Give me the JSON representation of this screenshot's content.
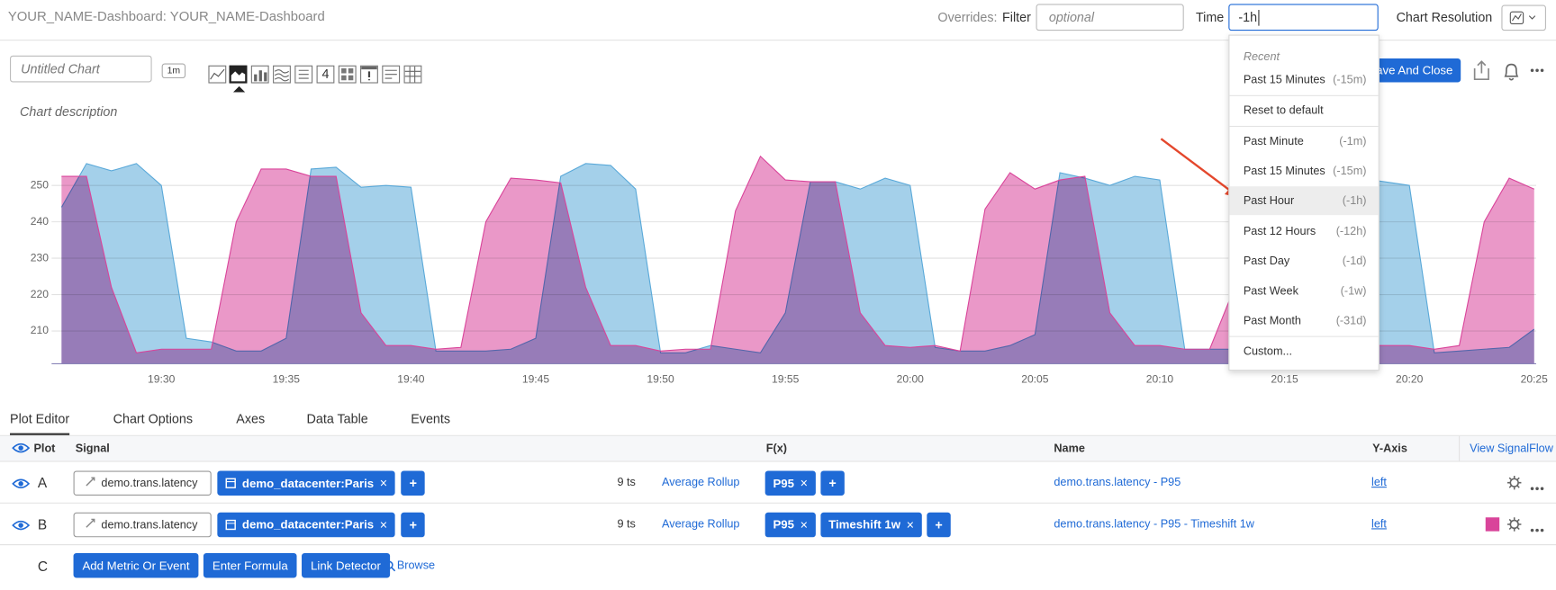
{
  "header": {
    "title": "YOUR_NAME-Dashboard: YOUR_NAME-Dashboard",
    "overrides_label": "Overrides:",
    "filter_label": "Filter",
    "filter_placeholder": "optional",
    "time_label": "Time",
    "time_value": "-1h",
    "resolution_label": "Chart Resolution"
  },
  "editor": {
    "chart_name_placeholder": "Untitled Chart",
    "resolution_badge": "1m",
    "single_value_icon": "4",
    "save_button": "Save And Close",
    "description_placeholder": "Chart description"
  },
  "chart_data": {
    "type": "area",
    "x": [
      "19:26",
      "19:27",
      "19:28",
      "19:29",
      "19:30",
      "19:31",
      "19:32",
      "19:33",
      "19:34",
      "19:35",
      "19:36",
      "19:37",
      "19:38",
      "19:39",
      "19:40",
      "19:41",
      "19:42",
      "19:43",
      "19:44",
      "19:45",
      "19:46",
      "19:47",
      "19:48",
      "19:49",
      "19:50",
      "19:51",
      "19:52",
      "19:53",
      "19:54",
      "19:55",
      "19:56",
      "19:57",
      "19:58",
      "19:59",
      "20:00",
      "20:01",
      "20:02",
      "20:03",
      "20:04",
      "20:05",
      "20:06",
      "20:07",
      "20:08",
      "20:09",
      "20:10",
      "20:11",
      "20:12",
      "20:13",
      "20:14",
      "20:15",
      "20:16",
      "20:17",
      "20:18",
      "20:19",
      "20:20",
      "20:21",
      "20:22",
      "20:23",
      "20:24",
      "20:25"
    ],
    "series": [
      {
        "name": "demo.trans.latency - P95",
        "color": "#5aa9d9",
        "values": [
          244,
          256,
          254,
          256,
          250,
          208,
          207,
          204.5,
          204.5,
          208,
          254.5,
          255,
          249.5,
          250,
          249.5,
          204.5,
          204.5,
          204.5,
          205,
          208,
          252.5,
          256,
          255.5,
          249,
          204,
          204,
          206,
          205,
          204,
          215,
          251,
          251,
          249,
          252,
          250,
          205.5,
          204.5,
          204.5,
          206,
          209,
          253.5,
          252,
          250,
          252.5,
          251.5,
          205,
          205,
          205,
          205,
          206,
          208,
          240,
          252,
          251,
          250,
          204,
          204.5,
          205,
          205.5,
          210.5
        ]
      },
      {
        "name": "demo.trans.latency - P95 - Timeshift 1w",
        "color": "#d9449a",
        "values": [
          252.5,
          252.5,
          222,
          204,
          205,
          205,
          205,
          240,
          254.5,
          254.5,
          252.5,
          252.5,
          215,
          206,
          206,
          205,
          205.5,
          240,
          252,
          251.5,
          250.7,
          222,
          206,
          206,
          204.5,
          205,
          205,
          243,
          258,
          251.5,
          251,
          251,
          215,
          206,
          205.5,
          206,
          204.5,
          243.5,
          253.5,
          249,
          251.5,
          252.5,
          215,
          206,
          206,
          205,
          205,
          222,
          240,
          253,
          252,
          215,
          206,
          206,
          206,
          205,
          206,
          240,
          252,
          249
        ]
      }
    ],
    "xlim": [
      "19:26",
      "20:25"
    ],
    "xticks": [
      "19:30",
      "19:35",
      "19:40",
      "19:45",
      "19:50",
      "19:55",
      "20:00",
      "20:05",
      "20:10",
      "20:15",
      "20:20",
      "20:25"
    ],
    "ylim": [
      201,
      262
    ],
    "yticks": [
      210,
      220,
      230,
      240,
      250
    ],
    "grid": true
  },
  "tabs": [
    "Plot Editor",
    "Chart Options",
    "Axes",
    "Data Table",
    "Events"
  ],
  "plot_table": {
    "columns": {
      "plot": "Plot",
      "signal": "Signal",
      "fx": "F(x)",
      "name": "Name",
      "y_axis": "Y-Axis",
      "view_signalflow": "View SignalFlow"
    },
    "add_label": "+",
    "rows": [
      {
        "letter": "A",
        "metric": "demo.trans.latency",
        "filter": "demo_datacenter:Paris",
        "ts": "9 ts",
        "rollup": "Average Rollup",
        "functions": [
          "P95"
        ],
        "axis": "left"
      },
      {
        "letter": "B",
        "metric": "demo.trans.latency",
        "filter": "demo_datacenter:Paris",
        "ts": "9 ts",
        "rollup": "Average Rollup",
        "functions": [
          "P95",
          "Timeshift 1w"
        ],
        "axis": "left"
      }
    ],
    "row_c": {
      "letter": "C",
      "buttons": [
        "Add Metric Or Event",
        "Enter Formula",
        "Link Detector"
      ],
      "browse": "Browse"
    }
  },
  "time_dropdown": {
    "recent_label": "Recent",
    "recent": [
      {
        "label": "Past 15 Minutes",
        "code": "(-15m)"
      }
    ],
    "reset": "Reset to default",
    "options": [
      {
        "label": "Past Minute",
        "code": "(-1m)"
      },
      {
        "label": "Past 15 Minutes",
        "code": "(-15m)"
      },
      {
        "label": "Past Hour",
        "code": "(-1h)"
      },
      {
        "label": "Past 12 Hours",
        "code": "(-12h)"
      },
      {
        "label": "Past Day",
        "code": "(-1d)"
      },
      {
        "label": "Past Week",
        "code": "(-1w)"
      },
      {
        "label": "Past Month",
        "code": "(-31d)"
      }
    ],
    "custom": "Custom..."
  }
}
